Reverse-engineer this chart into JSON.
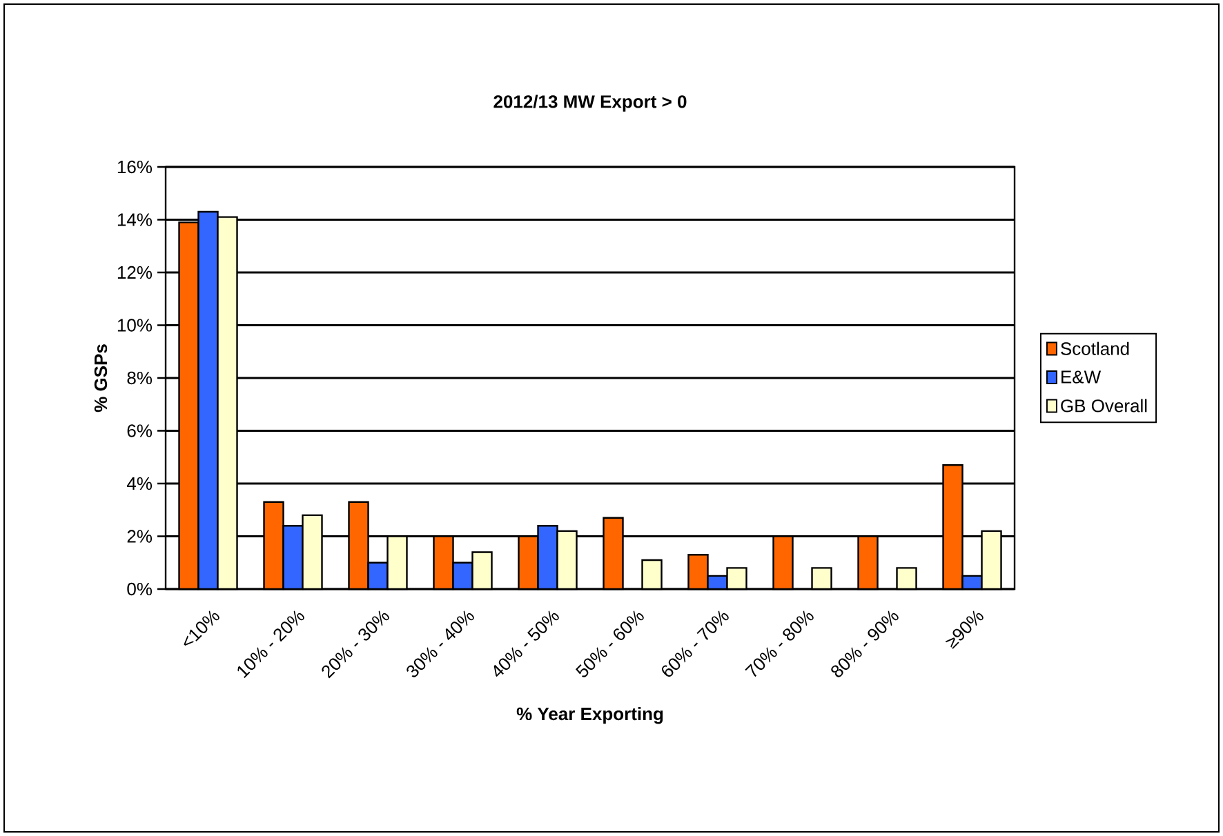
{
  "chart_data": {
    "type": "bar",
    "title": "2012/13 MW Export > 0",
    "xlabel": "% Year Exporting",
    "ylabel": "% GSPs",
    "categories": [
      "<10%",
      "10% - 20%",
      "20% - 30%",
      "30% - 40%",
      "40% - 50%",
      "50% - 60%",
      "60% - 70%",
      "70% - 80%",
      "80% - 90%",
      "≥90%"
    ],
    "series": [
      {
        "name": "Scotland",
        "color": "#ff6600",
        "values": [
          13.9,
          3.3,
          3.3,
          2.0,
          2.0,
          2.7,
          1.3,
          2.0,
          2.0,
          4.7
        ]
      },
      {
        "name": "E&W",
        "color": "#3366ff",
        "values": [
          14.3,
          2.4,
          1.0,
          1.0,
          2.4,
          null,
          0.5,
          null,
          null,
          0.5
        ]
      },
      {
        "name": "GB Overall",
        "color": "#ffffcc",
        "values": [
          14.1,
          2.8,
          2.0,
          1.4,
          2.2,
          1.1,
          0.8,
          0.8,
          0.8,
          2.2
        ]
      }
    ],
    "ylim": [
      0,
      16
    ],
    "yticks": [
      {
        "value": 0,
        "label": "0%"
      },
      {
        "value": 2,
        "label": "2%"
      },
      {
        "value": 4,
        "label": "4%"
      },
      {
        "value": 6,
        "label": "6%"
      },
      {
        "value": 8,
        "label": "8%"
      },
      {
        "value": 10,
        "label": "10%"
      },
      {
        "value": 12,
        "label": "12%"
      },
      {
        "value": 14,
        "label": "14%"
      },
      {
        "value": 16,
        "label": "16%"
      }
    ],
    "grid": "y",
    "legend": "right"
  }
}
